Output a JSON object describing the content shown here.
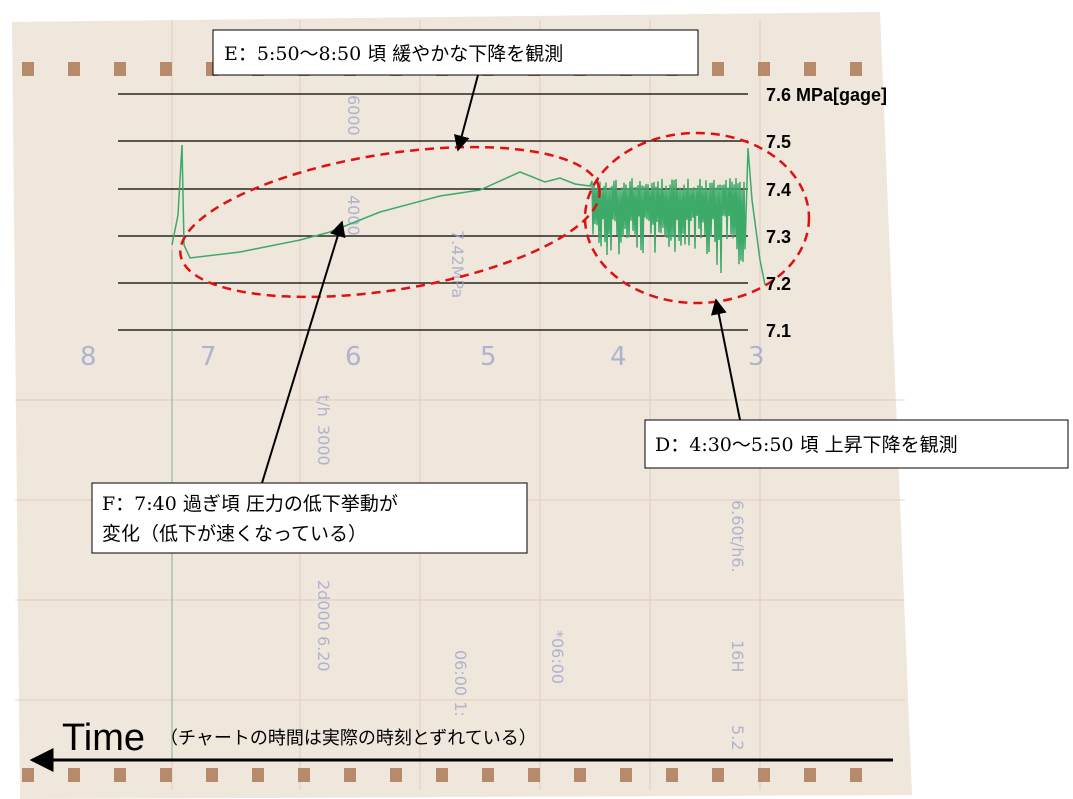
{
  "scale_labels": [
    "7.6 MPa[gage]",
    "7.5",
    "7.4",
    "7.3",
    "7.2",
    "7.1"
  ],
  "annotations": {
    "e": "E：5:50〜8:50 頃  緩やかな下降を観測",
    "d": "D：4:30〜5:50 頃  上昇下降を観測",
    "f": [
      "F：7:40 過ぎ頃  圧力の低下挙動が",
      "変化（低下が速くなっている）"
    ]
  },
  "time": {
    "label": "Time",
    "note": "（チャートの時間は実際の時刻とずれている）"
  },
  "paper_text": {
    "hours": [
      "8",
      "7",
      "6",
      "5",
      "4",
      "3"
    ],
    "printed": [
      "6000",
      "4000",
      "3000",
      "t/h",
      "7.42MPa",
      "2d000 6.20",
      "06:00 1:",
      "*06:00",
      "6.60t/h6.",
      "16H",
      "5.2"
    ]
  }
}
